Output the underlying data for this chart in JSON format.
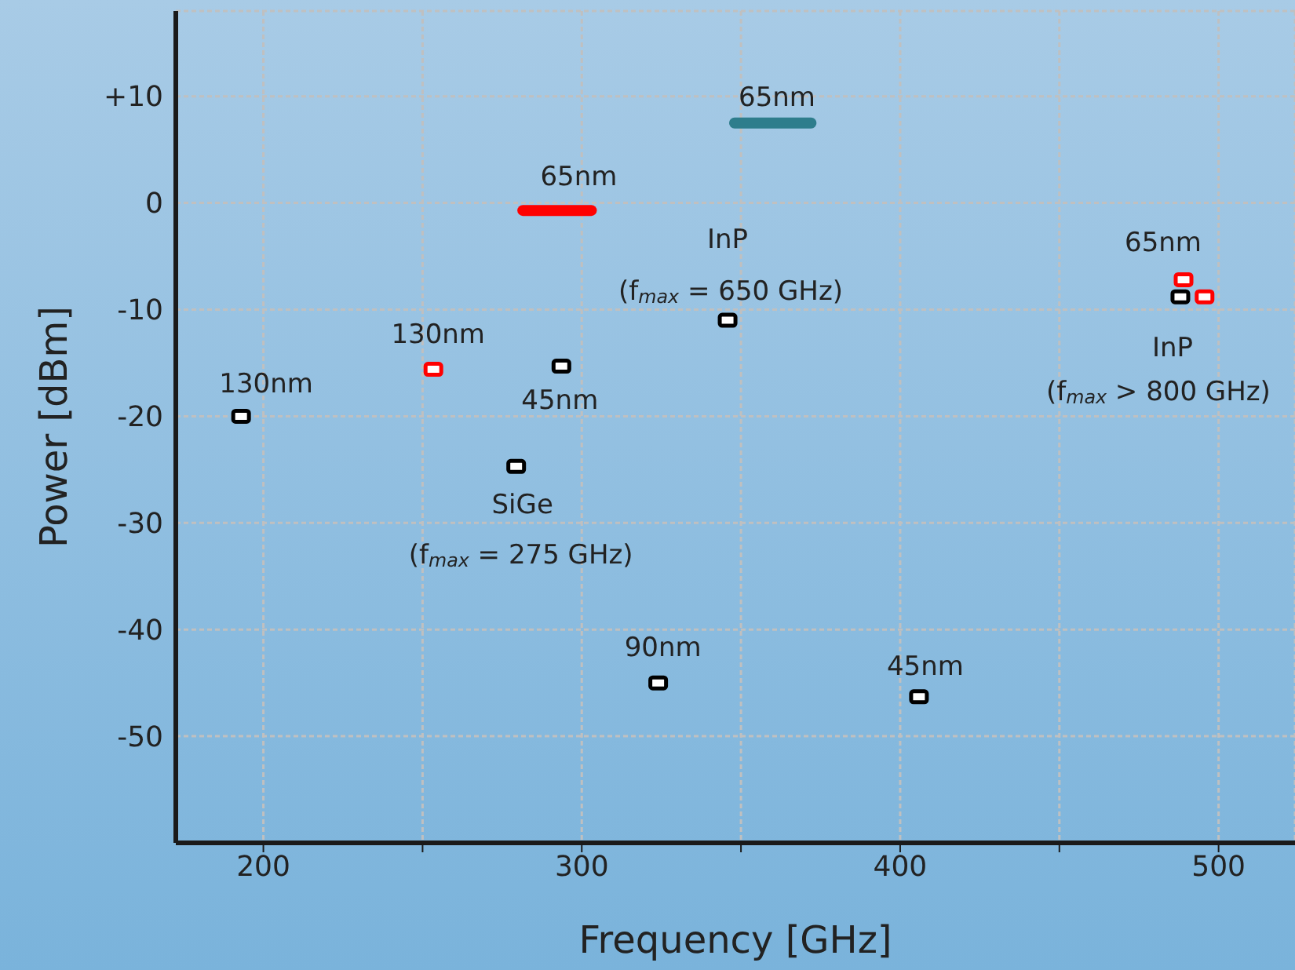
{
  "chart_data": {
    "type": "scatter",
    "xlabel": "Frequency [GHz]",
    "ylabel": "Power [dBm]",
    "xlim": [
      172.5,
      524
    ],
    "xticks": [
      200,
      {
        "value": 250,
        "label": null
      },
      300,
      {
        "value": 350,
        "label": null
      },
      400,
      {
        "value": 450,
        "label": null
      },
      500
    ],
    "ylim": [
      -60,
      18
    ],
    "yticks": [
      {
        "value": 10,
        "label": "+10"
      },
      0,
      -10,
      -20,
      -30,
      -40,
      -50
    ],
    "grid": true,
    "marker": "square",
    "series": [
      {
        "color": "#000000",
        "x": [
          193,
          293.6,
          279.4,
          345.8,
          324,
          405.9,
          488
        ],
        "values": [
          -20,
          -15.3,
          -24.7,
          -11,
          -45,
          -46.3,
          -8.8
        ]
      },
      {
        "color": "#ff0000",
        "x": [
          253.4,
          489,
          495.6
        ],
        "values": [
          -15.6,
          -7.2,
          -8.8
        ]
      },
      {
        "type": "line",
        "marker": "none",
        "color": "#ff0000",
        "x": [
          281.5,
          303
        ],
        "values": [
          -0.7,
          -0.7
        ]
      },
      {
        "type": "line",
        "marker": "none",
        "color": "#2e7d8c",
        "x": [
          348,
          372
        ],
        "values": [
          7.5,
          7.5
        ]
      }
    ],
    "annotations": [
      {
        "text": "130nm",
        "x": 193,
        "y": -20
      },
      {
        "text": "130nm",
        "x": 253.4,
        "y": -15.6
      },
      {
        "text": "45nm",
        "x": 293.6,
        "y": -15.3
      },
      {
        "text": "SiGe",
        "x": 279.4,
        "y": -24.7
      },
      {
        "text": "(f$_{max}$ = 275 GHz)",
        "x": 279.4,
        "y": -24.7
      },
      {
        "text": "65nm",
        "x": 303,
        "y": -0.7
      },
      {
        "text": "65nm",
        "x": 348,
        "y": 7.5
      },
      {
        "text": "InP",
        "x": 345.8,
        "y": -11
      },
      {
        "text": "(f$_{max}$ = 650 GHz)",
        "x": 345.8,
        "y": -11
      },
      {
        "text": "65nm",
        "x": 489,
        "y": -7.2
      },
      {
        "text": "InP",
        "x": 488,
        "y": -8.8
      },
      {
        "text": "(f$_{max}$ > 800 GHz)",
        "x": 488,
        "y": -8.8
      },
      {
        "text": "90nm",
        "x": 324,
        "y": -45
      },
      {
        "text": "45nm",
        "x": 405.9,
        "y": -46.3
      }
    ]
  }
}
